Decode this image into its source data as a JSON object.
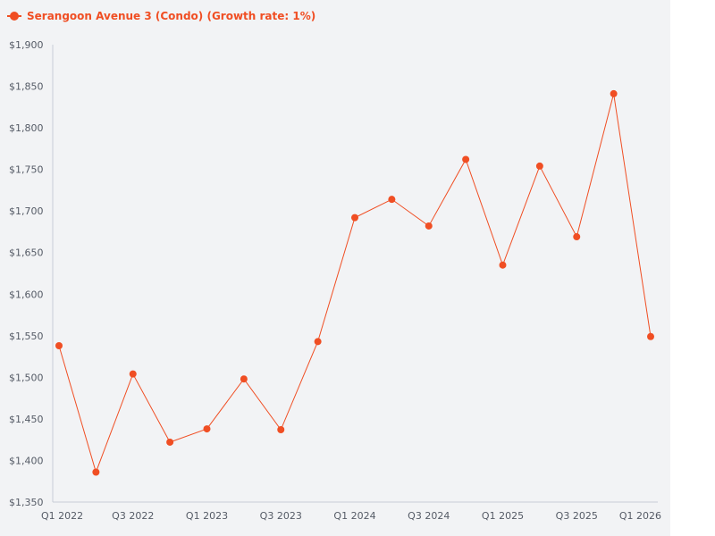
{
  "colors": {
    "accent": "#f04e23",
    "panel_background": "#f2f3f5",
    "axis": "#c8ccd6"
  },
  "legend": {
    "label": "Serangoon Avenue 3 (Condo) (Growth rate: 1%)",
    "icon": "line-with-dot-marker"
  },
  "chart_data": {
    "type": "line",
    "title": "",
    "xlabel": "",
    "ylabel": "",
    "categories": [
      "Q1 2022",
      "Q2 2022",
      "Q3 2022",
      "Q4 2022",
      "Q1 2023",
      "Q2 2023",
      "Q3 2023",
      "Q4 2023",
      "Q1 2024",
      "Q2 2024",
      "Q3 2024",
      "Q4 2024",
      "Q1 2025",
      "Q2 2025",
      "Q3 2025",
      "Q4 2025",
      "Q1 2026"
    ],
    "x_tick_labels": [
      "Q1 2022",
      "Q3 2022",
      "Q1 2023",
      "Q3 2023",
      "Q1 2024",
      "Q3 2024",
      "Q1 2025",
      "Q3 2025",
      "Q1 2026"
    ],
    "series": [
      {
        "name": "Serangoon Avenue 3 (Condo) (Growth rate: 1%)",
        "values": [
          1538,
          1386,
          1504,
          1422,
          1438,
          1498,
          1437,
          1543,
          1692,
          1714,
          1682,
          1762,
          1635,
          1754,
          1669,
          1841,
          1549
        ]
      }
    ],
    "ylim": [
      1350,
      1900
    ],
    "y_ticks": [
      1350,
      1400,
      1450,
      1500,
      1550,
      1600,
      1650,
      1700,
      1750,
      1800,
      1850,
      1900
    ],
    "y_tick_labels": [
      "$1,350",
      "$1,400",
      "$1,450",
      "$1,500",
      "$1,550",
      "$1,600",
      "$1,650",
      "$1,700",
      "$1,750",
      "$1,800",
      "$1,850",
      "$1,900"
    ],
    "grid": false,
    "legend_position": "top-left",
    "marker": "circle"
  }
}
